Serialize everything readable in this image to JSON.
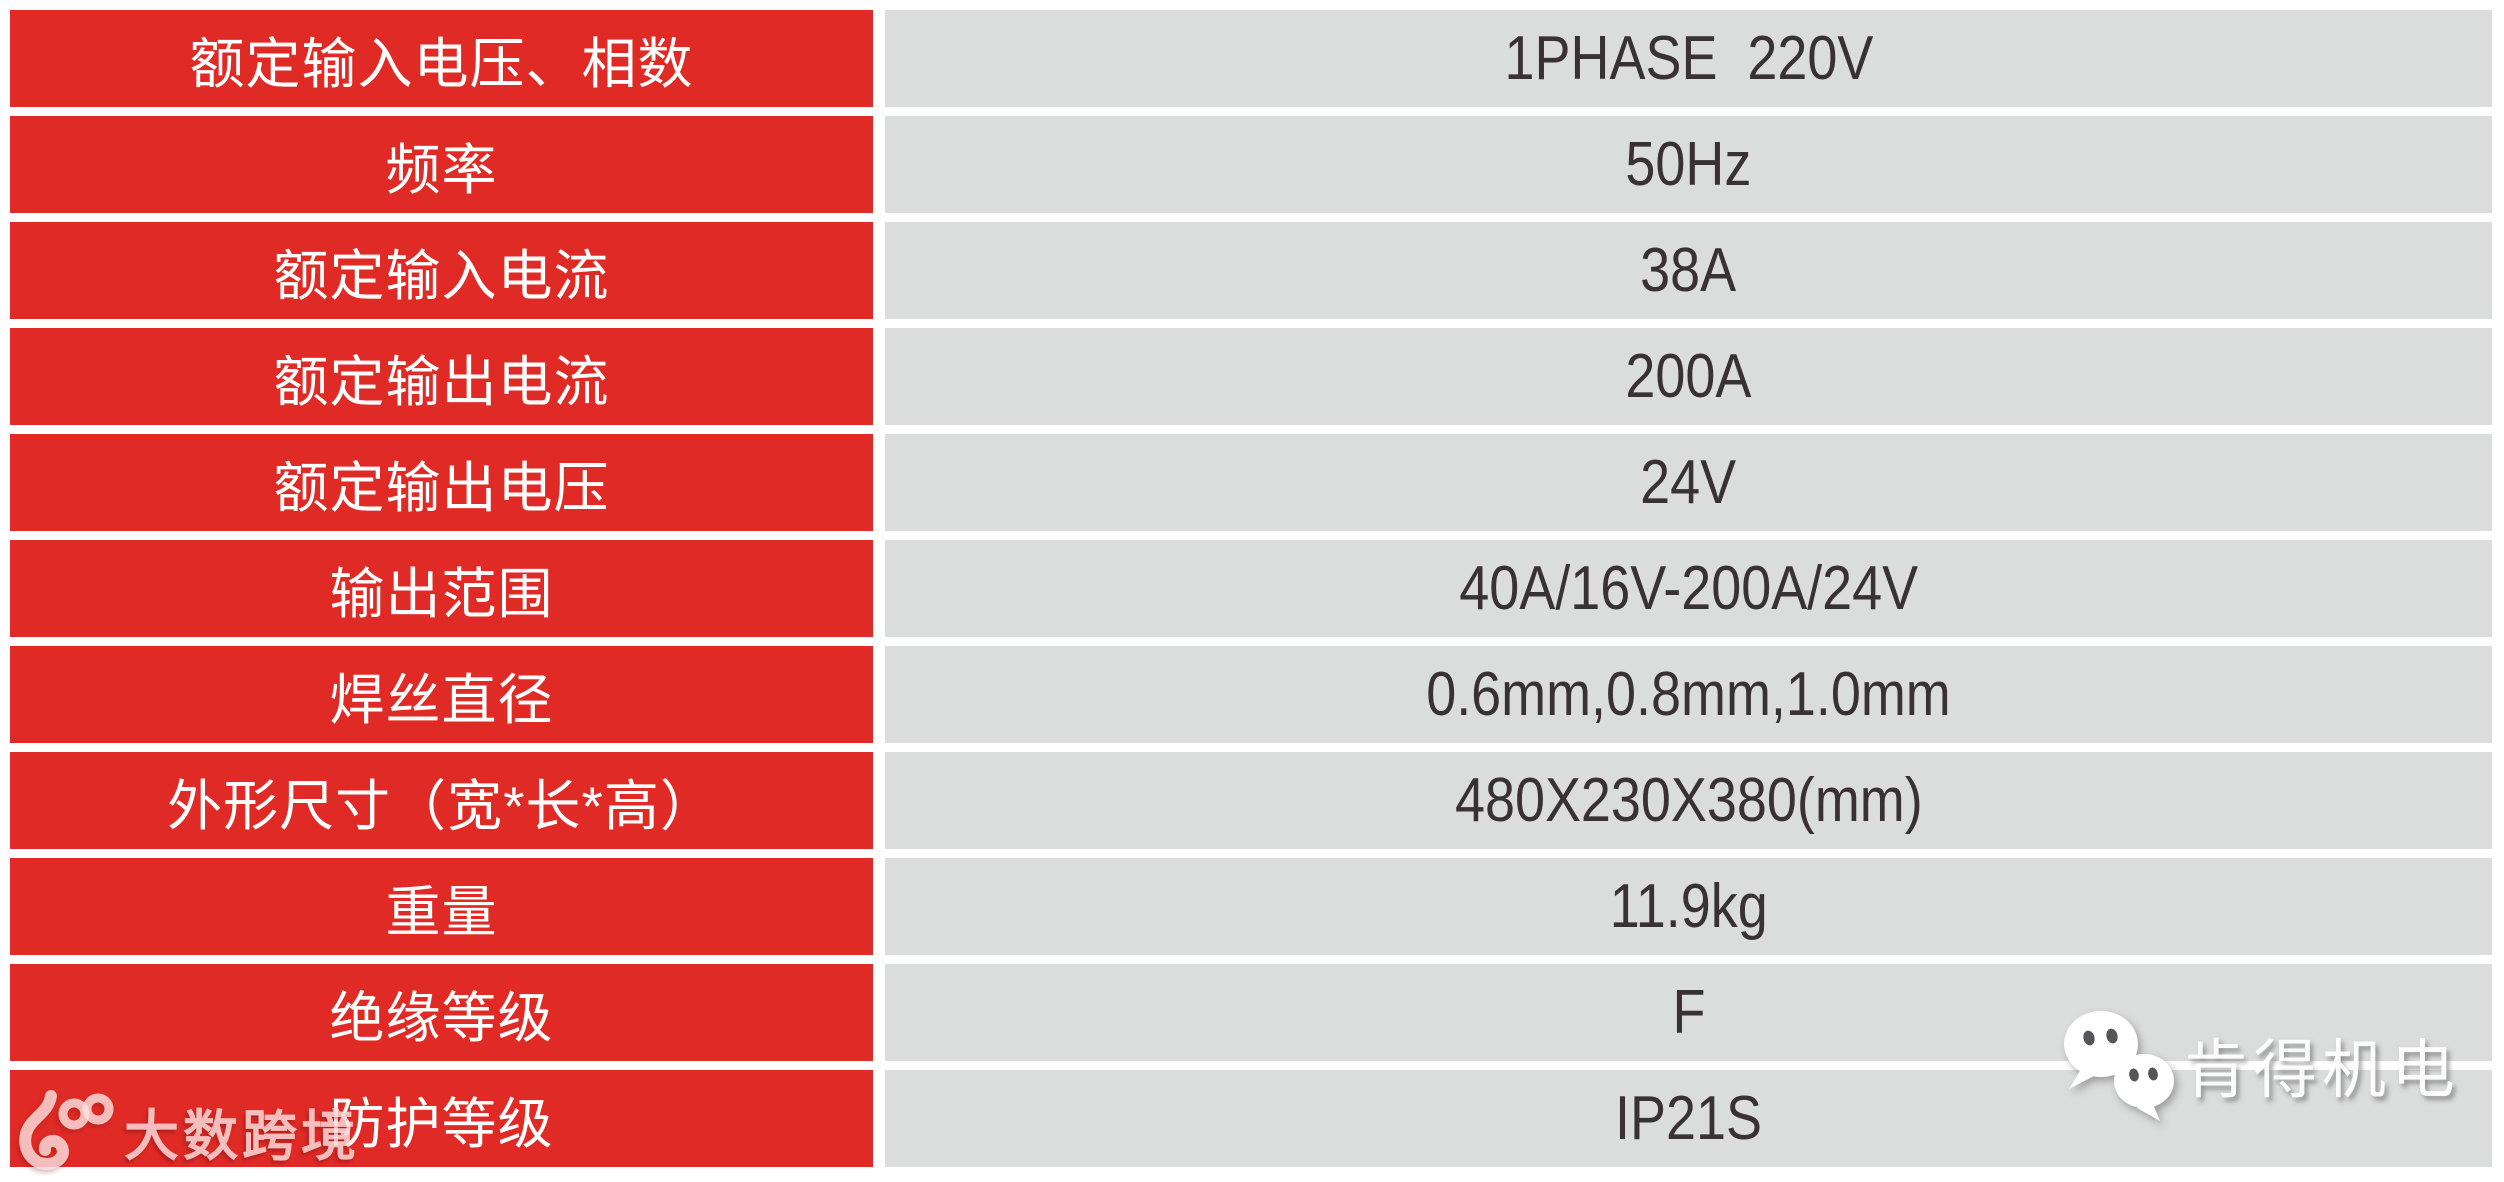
{
  "table": {
    "rows": [
      {
        "label": "额定输入电压、相数",
        "value": "1PHASE  220V"
      },
      {
        "label": "频率",
        "value": "50Hz"
      },
      {
        "label": "额定输入电流",
        "value": "38A"
      },
      {
        "label": "额定输出电流",
        "value": "200A"
      },
      {
        "label": "额定输出电压",
        "value": "24V"
      },
      {
        "label": "输出范围",
        "value": "40A/16V-200A/24V"
      },
      {
        "label": "焊丝直径",
        "value": "0.6mm,0.8mm,1.0mm"
      },
      {
        "label": "外形尺寸（宽*长*高）",
        "value": "480X230X380(mm)"
      },
      {
        "label": "重量",
        "value": "11.9kg"
      },
      {
        "label": "绝缘等级",
        "value": "F"
      },
      {
        "label": "防护等级",
        "value": "IP21S"
      }
    ]
  },
  "watermarks": {
    "left": {
      "brand": "大数跨境",
      "icon": "dashu-100-logo-icon"
    },
    "right": {
      "brand": "肯得机电",
      "icon": "wechat-bubbles-icon"
    }
  },
  "colors": {
    "red": "#DF2A25",
    "cell-gray": "#DBDCDC",
    "label-text": "#FFFFFF",
    "value-text": "#383234",
    "page-bg": "#FFFFFF"
  }
}
